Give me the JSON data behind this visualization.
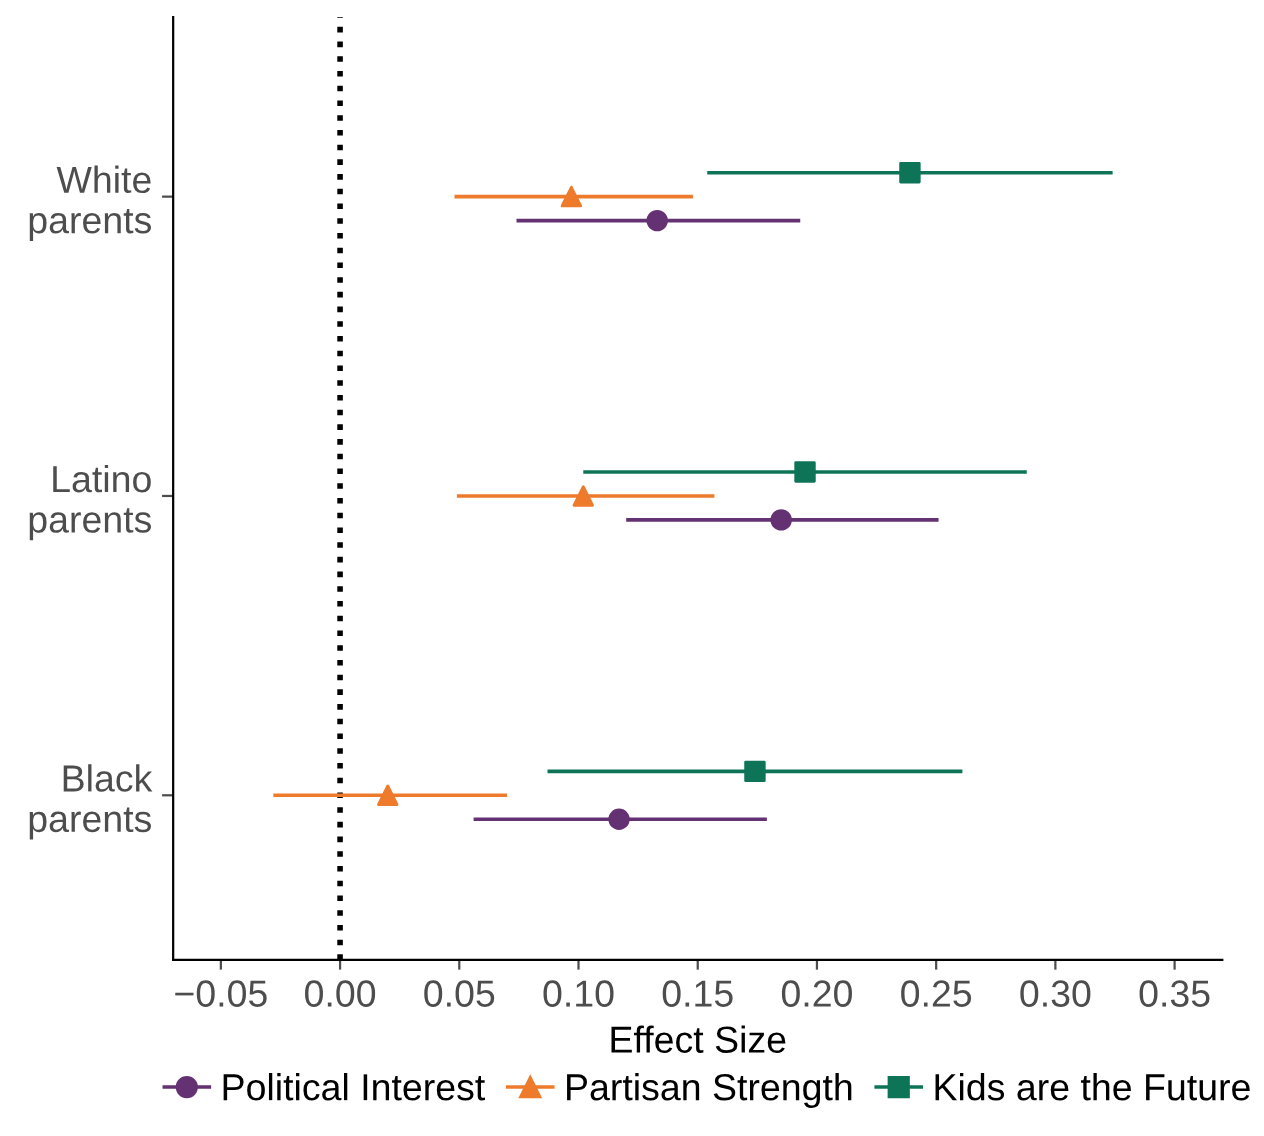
{
  "chart_data": {
    "type": "scatter",
    "orientation": "horizontal",
    "xlabel": "Effect Size",
    "categories": [
      "White\nparents",
      "Latino\nparents",
      "Black\nparents"
    ],
    "series": [
      {
        "name": "Political Interest",
        "color": "#643173",
        "marker": "circle",
        "values": [
          0.133,
          0.185,
          0.117
        ],
        "errors": [
          [
            0.074,
            0.193
          ],
          [
            0.12,
            0.251
          ],
          [
            0.056,
            0.179
          ]
        ]
      },
      {
        "name": "Partisan Strength",
        "color": "#ee7a2b",
        "marker": "triangle",
        "values": [
          0.097,
          0.102,
          0.02
        ],
        "errors": [
          [
            0.048,
            0.148
          ],
          [
            0.049,
            0.157
          ],
          [
            -0.028,
            0.07
          ]
        ]
      },
      {
        "name": "Kids are the Future",
        "color": "#0e7458",
        "marker": "square",
        "values": [
          0.239,
          0.195,
          0.174
        ],
        "errors": [
          [
            0.154,
            0.324
          ],
          [
            0.102,
            0.288
          ],
          [
            0.087,
            0.261
          ]
        ]
      }
    ],
    "xlim": [
      -0.07,
      0.37
    ],
    "xticks": [
      {
        "value": -0.05,
        "label": "−0.05"
      },
      {
        "value": 0.0,
        "label": "0.00"
      },
      {
        "value": 0.05,
        "label": "0.05"
      },
      {
        "value": 0.1,
        "label": "0.10"
      },
      {
        "value": 0.15,
        "label": "0.15"
      },
      {
        "value": 0.2,
        "label": "0.20"
      },
      {
        "value": 0.25,
        "label": "0.25"
      },
      {
        "value": 0.3,
        "label": "0.30"
      },
      {
        "value": 0.35,
        "label": "0.35"
      }
    ],
    "ref_lines": [
      {
        "axis": "x",
        "value": 0,
        "line_style": "dotted",
        "color": "#000000"
      }
    ],
    "legend": "bottom",
    "grid": false
  }
}
